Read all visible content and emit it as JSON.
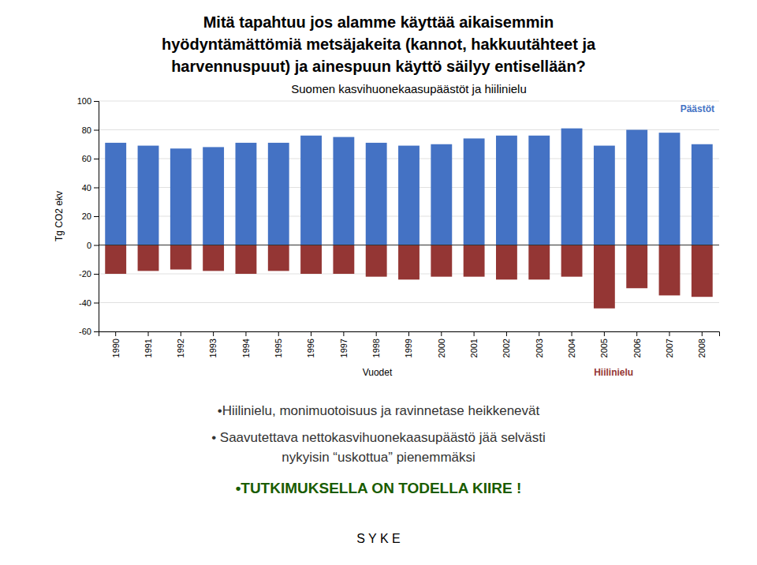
{
  "slide_title_lines": [
    "Mitä tapahtuu jos alamme käyttää aikaisemmin",
    "hyödyntämättömiä metsäjakeita (kannot, hakkuutähteet ja",
    "harvennuspuut)  ja ainespuun käyttö säilyy entisellään?"
  ],
  "bullets": [
    {
      "text": "•Hiilinielu, monimuotoisuus ja ravinnetase heikkenevät",
      "color": "#333333"
    },
    {
      "text": "• Saavutettava nettokasvihuonekaasupäästö jää selvästi",
      "color": "#333333"
    },
    {
      "text": "nykyisin “uskottua” pienemmäksi",
      "color": "#333333"
    },
    {
      "text": "•TUTKIMUKSELLA ON TODELLA KIIRE !",
      "color": "#1a5c00"
    }
  ],
  "footer": "S Y K E",
  "chart_data": {
    "type": "bar",
    "title": "Suomen kasvihuonekaasupäästöt ja hiilinielu",
    "xlabel": "Vuodet",
    "ylabel": "Tg CO2 ekv",
    "categories": [
      "1990",
      "1991",
      "1992",
      "1993",
      "1994",
      "1995",
      "1996",
      "1997",
      "1998",
      "1999",
      "2000",
      "2001",
      "2002",
      "2003",
      "2004",
      "2005",
      "2006",
      "2007",
      "2008"
    ],
    "series": [
      {
        "name": "Päästöt",
        "color": "#4472C4",
        "values": [
          71,
          69,
          67,
          68,
          71,
          71,
          76,
          75,
          71,
          69,
          70,
          74,
          76,
          76,
          81,
          69,
          80,
          78,
          70
        ]
      },
      {
        "name": "Hiilinielu",
        "color": "#943634",
        "values": [
          -20,
          -18,
          -17,
          -18,
          -20,
          -18,
          -20,
          -20,
          -22,
          -24,
          -22,
          -22,
          -24,
          -24,
          -22,
          -44,
          -30,
          -35,
          -36
        ]
      }
    ],
    "ylim": [
      -60,
      100
    ],
    "yticks": [
      -60,
      -40,
      -20,
      0,
      20,
      40,
      60,
      80,
      100
    ],
    "grid": true
  }
}
